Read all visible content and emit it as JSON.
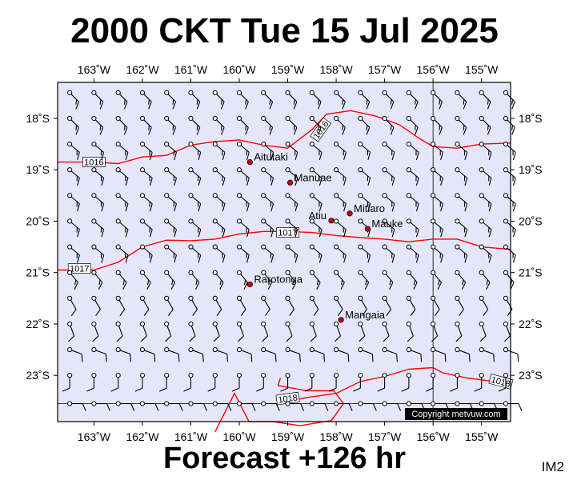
{
  "title": "2000 CKT Tue 15 Jul 2025",
  "footer": "Forecast +126 hr",
  "corner_label": "IM2",
  "copyright": "Copyright metvuw.com",
  "colors": {
    "ocean": "#e6e6fa",
    "isobar": "#ff0000",
    "land_marker": "#cc0000",
    "frame": "#000000"
  },
  "map": {
    "lon_range": [
      -163.75,
      -154.4
    ],
    "lat_range": [
      -17.3,
      -23.9
    ],
    "lon_ticks": [
      {
        "value": -163,
        "label": "163˚W"
      },
      {
        "value": -162,
        "label": "162˚W"
      },
      {
        "value": -161,
        "label": "161˚W"
      },
      {
        "value": -160,
        "label": "160˚W"
      },
      {
        "value": -159,
        "label": "159˚W"
      },
      {
        "value": -158,
        "label": "158˚W"
      },
      {
        "value": -157,
        "label": "157˚W"
      },
      {
        "value": -156,
        "label": "156˚W"
      },
      {
        "value": -155,
        "label": "155˚W"
      }
    ],
    "lat_ticks": [
      {
        "value": -18,
        "label": "18˚S"
      },
      {
        "value": -19,
        "label": "19˚S"
      },
      {
        "value": -20,
        "label": "20˚S"
      },
      {
        "value": -21,
        "label": "21˚S"
      },
      {
        "value": -22,
        "label": "22˚S"
      },
      {
        "value": -23,
        "label": "23˚S"
      }
    ],
    "grid_lines": {
      "meridian": -156,
      "parallel": -23.55
    },
    "places": [
      {
        "name": "Aitutaki",
        "lon": -159.78,
        "lat": -18.85
      },
      {
        "name": "Manuae",
        "lon": -158.95,
        "lat": -19.25
      },
      {
        "name": "Mitiaro",
        "lon": -157.72,
        "lat": -19.85
      },
      {
        "name": "Atiu",
        "lon": -158.1,
        "lat": -19.99,
        "label_side": "left"
      },
      {
        "name": "Mauke",
        "lon": -157.35,
        "lat": -20.15
      },
      {
        "name": "Rarotonga",
        "lon": -159.78,
        "lat": -21.23
      },
      {
        "name": "Mangaia",
        "lon": -157.9,
        "lat": -21.92
      }
    ],
    "isobars": [
      {
        "value": "1016",
        "points": [
          [
            -163.75,
            -18.85
          ],
          [
            -163,
            -18.85
          ],
          [
            -162.5,
            -18.88
          ],
          [
            -162,
            -18.75
          ],
          [
            -161.5,
            -18.72
          ],
          [
            -161,
            -18.52
          ],
          [
            -160.5,
            -18.45
          ],
          [
            -160,
            -18.42
          ],
          [
            -159.5,
            -18.52
          ],
          [
            -159,
            -18.58
          ],
          [
            -158.5,
            -18.22
          ],
          [
            -158.2,
            -17.92
          ],
          [
            -157.7,
            -17.85
          ],
          [
            -157.2,
            -17.95
          ],
          [
            -156.7,
            -18.12
          ],
          [
            -156.3,
            -18.38
          ],
          [
            -156,
            -18.55
          ],
          [
            -155.5,
            -18.58
          ],
          [
            -155,
            -18.5
          ],
          [
            -154.4,
            -18.48
          ]
        ],
        "labels": [
          {
            "lon": -163.0,
            "lat": -18.85
          },
          {
            "lon": -158.32,
            "lat": -18.22,
            "angle": -55
          }
        ]
      },
      {
        "value": "1017",
        "points": [
          [
            -163.75,
            -20.95
          ],
          [
            -163,
            -20.95
          ],
          [
            -162.5,
            -20.8
          ],
          [
            -162,
            -20.5
          ],
          [
            -161.5,
            -20.37
          ],
          [
            -161,
            -20.38
          ],
          [
            -160.5,
            -20.35
          ],
          [
            -160,
            -20.25
          ],
          [
            -159.5,
            -20.2
          ],
          [
            -159,
            -20.2
          ],
          [
            -158.5,
            -20.22
          ],
          [
            -158,
            -20.28
          ],
          [
            -157.5,
            -20.32
          ],
          [
            -157,
            -20.35
          ],
          [
            -156.5,
            -20.4
          ],
          [
            -156,
            -20.35
          ],
          [
            -155.5,
            -20.35
          ],
          [
            -155,
            -20.5
          ],
          [
            -154.4,
            -20.55
          ]
        ],
        "labels": [
          {
            "lon": -163.3,
            "lat": -20.92
          },
          {
            "lon": -159.0,
            "lat": -20.22
          }
        ]
      },
      {
        "value": "1018",
        "points": [
          [
            -159.05,
            -23.52
          ],
          [
            -158.6,
            -23.43
          ],
          [
            -158,
            -23.35
          ],
          [
            -157.5,
            -23.12
          ],
          [
            -157,
            -23.02
          ],
          [
            -156.5,
            -22.88
          ],
          [
            -156,
            -22.85
          ],
          [
            -155.8,
            -22.95
          ],
          [
            -155.3,
            -23.05
          ],
          [
            -154.9,
            -23.1
          ],
          [
            -154.4,
            -23.15
          ]
        ],
        "labels": [
          {
            "lon": -159.0,
            "lat": -23.45,
            "angle": -8
          },
          {
            "lon": -154.6,
            "lat": -23.12,
            "angle": 15
          }
        ]
      },
      {
        "value": "",
        "points": [
          [
            -160.5,
            -24.1
          ],
          [
            -160.1,
            -23.35
          ],
          [
            -159.8,
            -23.9
          ],
          [
            -159.3,
            -23.9
          ],
          [
            -158.75,
            -23.98
          ],
          [
            -158.1,
            -23.88
          ],
          [
            -157.85,
            -23.55
          ],
          [
            -158.05,
            -23.3
          ],
          [
            -158.6,
            -23.3
          ],
          [
            -159.2,
            -23.2
          ],
          [
            -159.15,
            -23.05
          ]
        ],
        "labels": []
      }
    ],
    "wind_barbs": {
      "columns": [
        -163.5,
        -163.0,
        -162.5,
        -162.0,
        -161.5,
        -161.0,
        -160.5,
        -160.0,
        -159.5,
        -159.0,
        -158.5,
        -158.0,
        -157.5,
        -157.0,
        -156.5,
        -156.0,
        -155.5,
        -155.0,
        -154.5
      ],
      "rows": [
        {
          "lat": -17.5,
          "dir": 135,
          "barbs": 2
        },
        {
          "lat": -18.0,
          "dir": 135,
          "barbs": 2
        },
        {
          "lat": -18.5,
          "dir": 130,
          "barbs": 2
        },
        {
          "lat": -19.0,
          "dir": 130,
          "barbs": 2
        },
        {
          "lat": -19.5,
          "dir": 130,
          "barbs": 2
        },
        {
          "lat": -20.0,
          "dir": 130,
          "barbs": 2
        },
        {
          "lat": -20.5,
          "dir": 130,
          "barbs": 2
        },
        {
          "lat": -21.0,
          "dir": 140,
          "barbs": 2
        },
        {
          "lat": -21.5,
          "dir": 150,
          "barbs": 1
        },
        {
          "lat": -22.0,
          "dir": 160,
          "barbs": 1
        },
        {
          "lat": -22.5,
          "dir": 110,
          "barbs": 1
        },
        {
          "lat": -23.0,
          "dir": 180,
          "barbs": 1
        },
        {
          "lat": -23.55,
          "dir": 90,
          "barbs": 1
        }
      ]
    }
  }
}
